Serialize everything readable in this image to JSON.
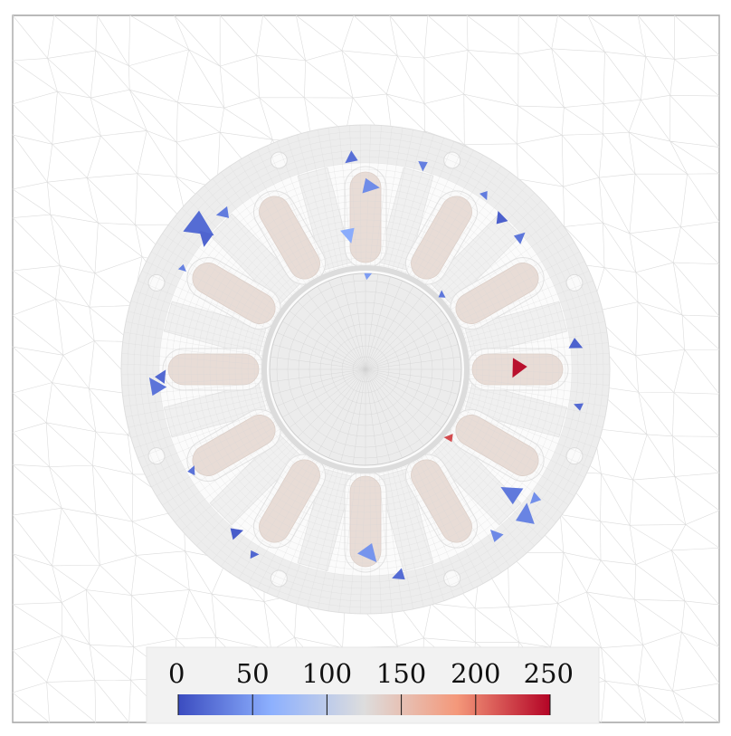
{
  "figure": {
    "type": "finite-element mesh quality map of a motor cross-section",
    "background_color": "#ffffff",
    "mesh_line_color": "#d4d4d4",
    "domain_fill_color": "#ededed",
    "coil_fill_color": "#e8dcd6",
    "stator_slots": 12,
    "mounting_holes": 8
  },
  "colorbar": {
    "min": 0,
    "max": 250,
    "tick_labels": [
      "0",
      "50",
      "100",
      "150",
      "200",
      "250"
    ],
    "colormap": "coolwarm",
    "colors": [
      "#3b4cc0",
      "#8db0fe",
      "#dddddd",
      "#f4987a",
      "#b40426"
    ]
  },
  "highlighted_elements": [
    {
      "value": 20
    },
    {
      "value": 15
    },
    {
      "value": 30
    },
    {
      "value": 25
    },
    {
      "value": 18
    },
    {
      "value": 40
    },
    {
      "value": 60
    },
    {
      "value": 22
    },
    {
      "value": 28
    },
    {
      "value": 35
    },
    {
      "value": 10
    },
    {
      "value": 45
    },
    {
      "value": 245
    },
    {
      "value": 220
    },
    {
      "value": 12
    },
    {
      "value": 26
    },
    {
      "value": 14
    },
    {
      "value": 32
    },
    {
      "value": 20
    },
    {
      "value": 38
    },
    {
      "value": 24
    },
    {
      "value": 16
    },
    {
      "value": 30
    },
    {
      "value": 42
    },
    {
      "value": 18
    },
    {
      "value": 27
    },
    {
      "value": 50
    },
    {
      "value": 33
    }
  ]
}
